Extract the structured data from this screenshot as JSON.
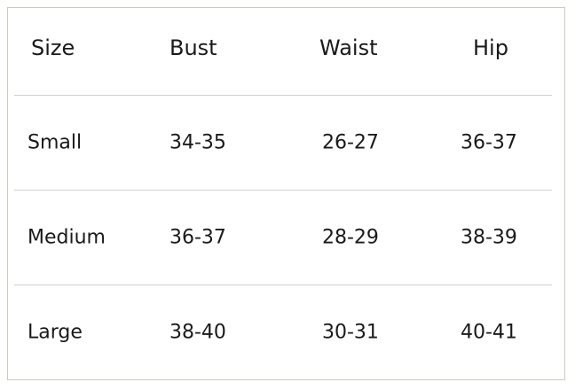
{
  "table": {
    "headers": [
      "Size",
      "Bust",
      "Waist",
      "Hip"
    ],
    "rows": [
      [
        "Small",
        "34-35",
        "26-27",
        "36-37"
      ],
      [
        "Medium",
        "36-37",
        "28-29",
        "38-39"
      ],
      [
        "Large",
        "38-40",
        "30-31",
        "40-41"
      ]
    ]
  }
}
